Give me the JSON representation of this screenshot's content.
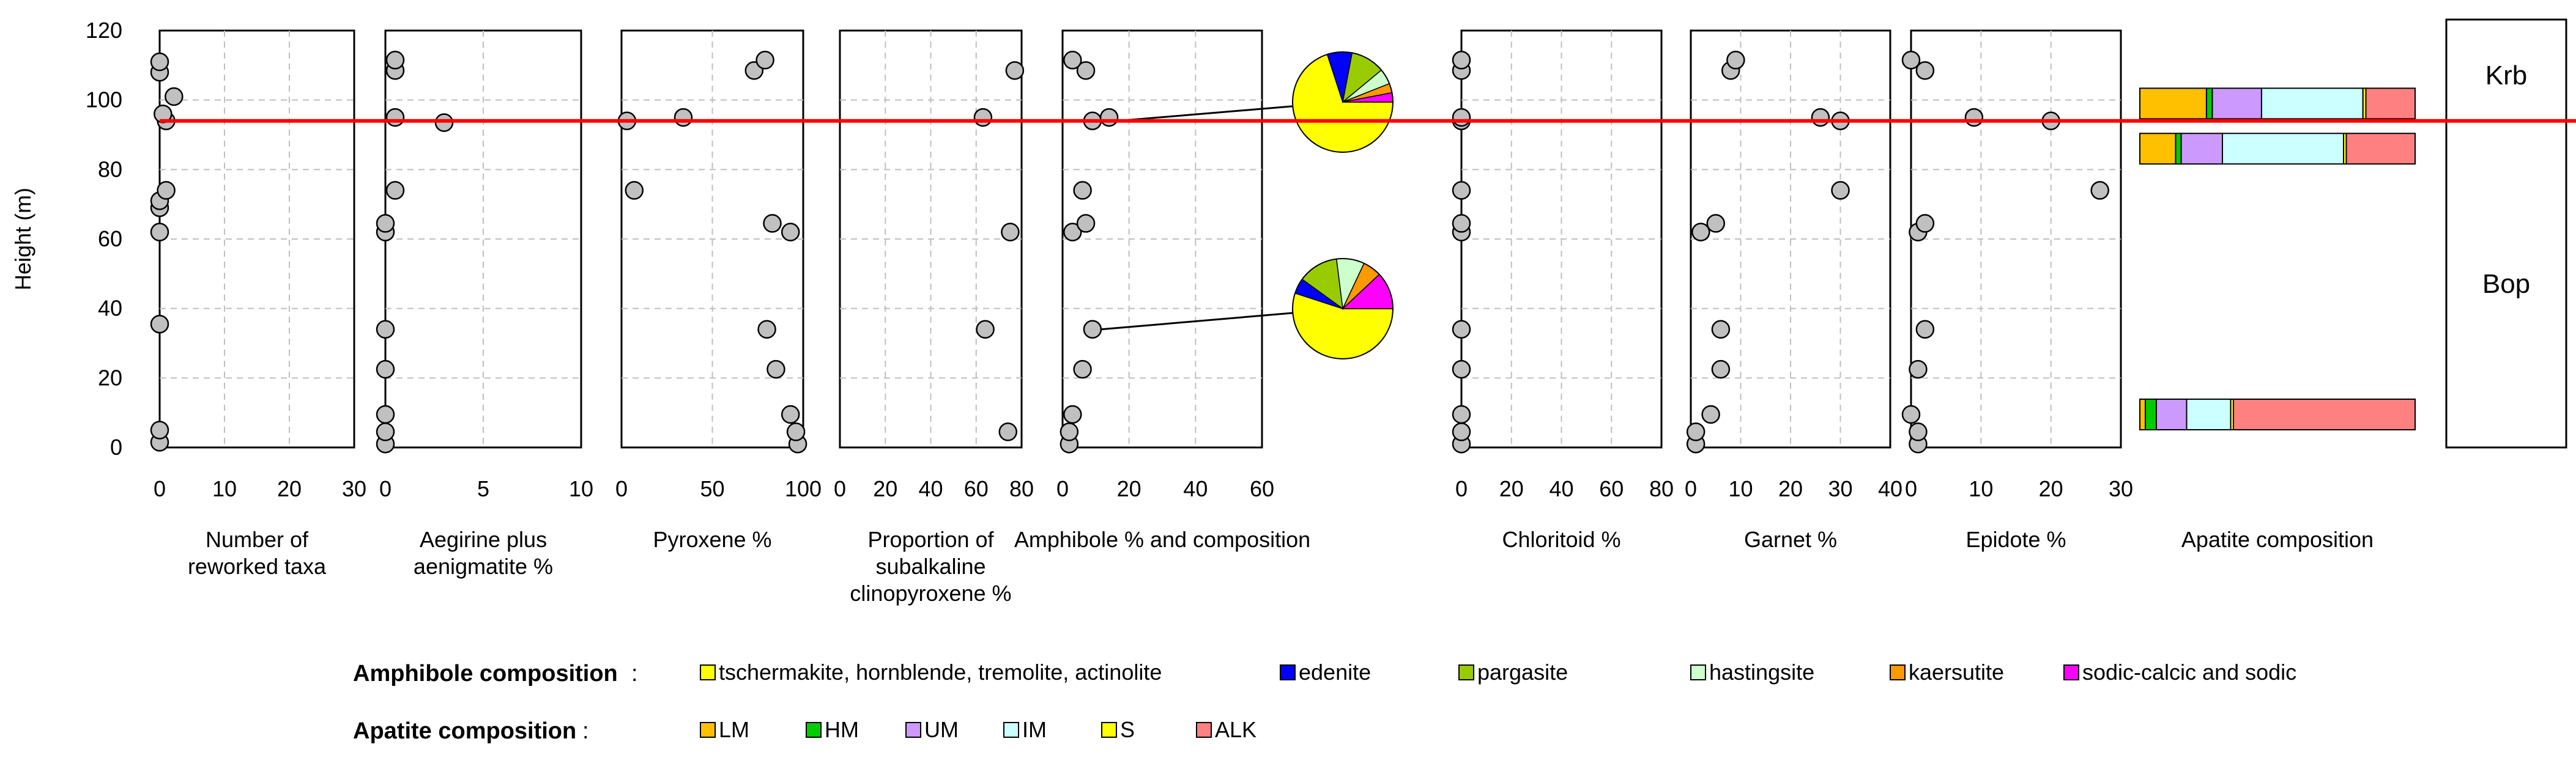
{
  "chart_data": {
    "type": "scatter",
    "layout": "multi-panel strip log",
    "y_axis": {
      "label": "Height (m)",
      "range": [
        0,
        120
      ],
      "ticks": [
        0,
        20,
        40,
        60,
        80,
        100,
        120
      ]
    },
    "reference_line": {
      "height": 94,
      "color": "#ff0000"
    },
    "panels": [
      {
        "label_lines": [
          "Number of",
          "reworked taxa"
        ],
        "x_range": [
          0,
          30
        ],
        "x_ticks": [
          0,
          10,
          20,
          30
        ],
        "points": [
          {
            "x": 0,
            "y": 1.5
          },
          {
            "x": 0,
            "y": 5
          },
          {
            "x": 0,
            "y": 35.5
          },
          {
            "x": 0,
            "y": 62
          },
          {
            "x": 0,
            "y": 69
          },
          {
            "x": 0,
            "y": 71
          },
          {
            "x": 1,
            "y": 74
          },
          {
            "x": 1,
            "y": 94
          },
          {
            "x": 0.5,
            "y": 96
          },
          {
            "x": 2.2,
            "y": 101
          },
          {
            "x": 0,
            "y": 108
          },
          {
            "x": 0,
            "y": 111
          }
        ]
      },
      {
        "label_lines": [
          "Aegirine plus",
          "aenigmatite %"
        ],
        "x_range": [
          0,
          10
        ],
        "x_ticks": [
          0,
          5,
          10
        ],
        "points": [
          {
            "x": 0,
            "y": 1
          },
          {
            "x": 0,
            "y": 4.5
          },
          {
            "x": 0,
            "y": 9.5
          },
          {
            "x": 0,
            "y": 22.5
          },
          {
            "x": 0,
            "y": 34
          },
          {
            "x": 0,
            "y": 62
          },
          {
            "x": 0,
            "y": 64.5
          },
          {
            "x": 0.5,
            "y": 74
          },
          {
            "x": 0.5,
            "y": 95
          },
          {
            "x": 3,
            "y": 93.5
          },
          {
            "x": 0.5,
            "y": 108.5
          },
          {
            "x": 0.5,
            "y": 111.5
          }
        ]
      },
      {
        "label_lines": [
          "Pyroxene %"
        ],
        "x_range": [
          0,
          100
        ],
        "x_ticks": [
          0,
          50,
          100
        ],
        "points": [
          {
            "x": 97,
            "y": 1
          },
          {
            "x": 96,
            "y": 4.5
          },
          {
            "x": 93,
            "y": 9.5
          },
          {
            "x": 85,
            "y": 22.5
          },
          {
            "x": 80,
            "y": 34
          },
          {
            "x": 93,
            "y": 62
          },
          {
            "x": 83,
            "y": 64.5
          },
          {
            "x": 7,
            "y": 74
          },
          {
            "x": 3,
            "y": 94
          },
          {
            "x": 34,
            "y": 95
          },
          {
            "x": 73,
            "y": 108.5
          },
          {
            "x": 79,
            "y": 111.5
          }
        ]
      },
      {
        "label_lines": [
          "Proportion of",
          "subalkaline",
          "clinopyroxene %"
        ],
        "x_range": [
          0,
          80
        ],
        "x_ticks": [
          0,
          20,
          40,
          60,
          80
        ],
        "points": [
          {
            "x": 74,
            "y": 4.5
          },
          {
            "x": 64,
            "y": 34
          },
          {
            "x": 75,
            "y": 62
          },
          {
            "x": 63,
            "y": 95
          },
          {
            "x": 77,
            "y": 108.5
          }
        ]
      },
      {
        "label_lines": [
          "Amphibole % and composition"
        ],
        "x_range": [
          0,
          60
        ],
        "x_ticks": [
          0,
          20,
          40,
          60
        ],
        "points": [
          {
            "x": 2,
            "y": 1
          },
          {
            "x": 2,
            "y": 4.5
          },
          {
            "x": 3,
            "y": 9.5
          },
          {
            "x": 6,
            "y": 22.5
          },
          {
            "x": 9,
            "y": 34
          },
          {
            "x": 3,
            "y": 62
          },
          {
            "x": 7,
            "y": 64.5
          },
          {
            "x": 6,
            "y": 74
          },
          {
            "x": 9,
            "y": 94
          },
          {
            "x": 14,
            "y": 95
          },
          {
            "x": 7,
            "y": 108.5
          },
          {
            "x": 3,
            "y": 111.5
          }
        ]
      },
      {
        "label_lines": [
          "Chloritoid %"
        ],
        "x_range": [
          0,
          80
        ],
        "x_ticks": [
          0,
          20,
          40,
          60,
          80
        ],
        "points": [
          {
            "x": 0,
            "y": 1
          },
          {
            "x": 0,
            "y": 4.5
          },
          {
            "x": 0,
            "y": 9.5
          },
          {
            "x": 0,
            "y": 22.5
          },
          {
            "x": 0,
            "y": 34
          },
          {
            "x": 0,
            "y": 62
          },
          {
            "x": 0,
            "y": 64.5
          },
          {
            "x": 0,
            "y": 74
          },
          {
            "x": 0,
            "y": 94
          },
          {
            "x": 0,
            "y": 95
          },
          {
            "x": 0,
            "y": 108.5
          },
          {
            "x": 0,
            "y": 111.5
          }
        ]
      },
      {
        "label_lines": [
          "Garnet %"
        ],
        "x_range": [
          0,
          40
        ],
        "x_ticks": [
          0,
          10,
          20,
          30,
          40
        ],
        "points": [
          {
            "x": 1,
            "y": 1
          },
          {
            "x": 1,
            "y": 4.5
          },
          {
            "x": 4,
            "y": 9.5
          },
          {
            "x": 6,
            "y": 22.5
          },
          {
            "x": 6,
            "y": 34
          },
          {
            "x": 2,
            "y": 62
          },
          {
            "x": 5,
            "y": 64.5
          },
          {
            "x": 30,
            "y": 74
          },
          {
            "x": 30,
            "y": 94
          },
          {
            "x": 26,
            "y": 95
          },
          {
            "x": 8,
            "y": 108.5
          },
          {
            "x": 9,
            "y": 111.5
          }
        ]
      },
      {
        "label_lines": [
          "Epidote %"
        ],
        "x_range": [
          0,
          30
        ],
        "x_ticks": [
          0,
          10,
          20,
          30
        ],
        "points": [
          {
            "x": 1,
            "y": 1
          },
          {
            "x": 1,
            "y": 4.5
          },
          {
            "x": 0,
            "y": 9.5
          },
          {
            "x": 1,
            "y": 22.5
          },
          {
            "x": 2,
            "y": 34
          },
          {
            "x": 1,
            "y": 62
          },
          {
            "x": 2,
            "y": 64.5
          },
          {
            "x": 27,
            "y": 74
          },
          {
            "x": 20,
            "y": 94
          },
          {
            "x": 9,
            "y": 95
          },
          {
            "x": 2,
            "y": 108.5
          },
          {
            "x": 0,
            "y": 111.5
          }
        ]
      }
    ],
    "amphibole_pies": [
      {
        "height": 94,
        "point_x": 14,
        "slices": [
          {
            "category": "tschermakite, hornblende, tremolite, actinolite",
            "value": 70
          },
          {
            "category": "edenite",
            "value": 8
          },
          {
            "category": "pargasite",
            "value": 11
          },
          {
            "category": "hastingsite",
            "value": 5
          },
          {
            "category": "kaersutite",
            "value": 3
          },
          {
            "category": "sodic-calcic and sodic",
            "value": 3
          }
        ]
      },
      {
        "height": 34,
        "point_x": 9,
        "slices": [
          {
            "category": "tschermakite, hornblende, tremolite, actinolite",
            "value": 55
          },
          {
            "category": "edenite",
            "value": 5
          },
          {
            "category": "pargasite",
            "value": 13
          },
          {
            "category": "hastingsite",
            "value": 9
          },
          {
            "category": "kaersutite",
            "value": 6
          },
          {
            "category": "sodic-calcic and sodic",
            "value": 12
          }
        ]
      }
    ],
    "apatite_panel": {
      "label": "Apatite composition",
      "bars": [
        {
          "height": 99,
          "segments": [
            {
              "category": "LM",
              "value": 23
            },
            {
              "category": "HM",
              "value": 2
            },
            {
              "category": "UM",
              "value": 17
            },
            {
              "category": "IM",
              "value": 35
            },
            {
              "category": "S",
              "value": 1
            },
            {
              "category": "ALK",
              "value": 17
            }
          ]
        },
        {
          "height": 86,
          "segments": [
            {
              "category": "LM",
              "value": 13
            },
            {
              "category": "HM",
              "value": 2
            },
            {
              "category": "UM",
              "value": 15
            },
            {
              "category": "IM",
              "value": 44
            },
            {
              "category": "S",
              "value": 1
            },
            {
              "category": "ALK",
              "value": 25
            }
          ]
        },
        {
          "height": 9.5,
          "segments": [
            {
              "category": "LM",
              "value": 2
            },
            {
              "category": "HM",
              "value": 4
            },
            {
              "category": "UM",
              "value": 11
            },
            {
              "category": "IM",
              "value": 16
            },
            {
              "category": "S",
              "value": 1
            },
            {
              "category": "ALK",
              "value": 66
            }
          ]
        }
      ]
    },
    "formations": [
      {
        "name": "Krb",
        "from": 94,
        "to": 120
      },
      {
        "name": "Bop",
        "from": 0,
        "to": 94
      }
    ],
    "legends": [
      {
        "title": "Amphibole composition",
        "items": [
          {
            "label": "tschermakite, hornblende, tremolite, actinolite",
            "color": "#ffff00"
          },
          {
            "label": "edenite",
            "color": "#0000ff"
          },
          {
            "label": "pargasite",
            "color": "#99cc00"
          },
          {
            "label": "hastingsite",
            "color": "#ccffcc"
          },
          {
            "label": "kaersutite",
            "color": "#ff9900"
          },
          {
            "label": "sodic-calcic and sodic",
            "color": "#ff00ff"
          }
        ]
      },
      {
        "title": "Apatite composition",
        "items": [
          {
            "label": "LM",
            "color": "#ffc000"
          },
          {
            "label": "HM",
            "color": "#00cc00"
          },
          {
            "label": "UM",
            "color": "#cc99ff"
          },
          {
            "label": "IM",
            "color": "#ccffff"
          },
          {
            "label": "S",
            "color": "#ffff00"
          },
          {
            "label": "ALK",
            "color": "#ff8080"
          }
        ]
      }
    ]
  }
}
